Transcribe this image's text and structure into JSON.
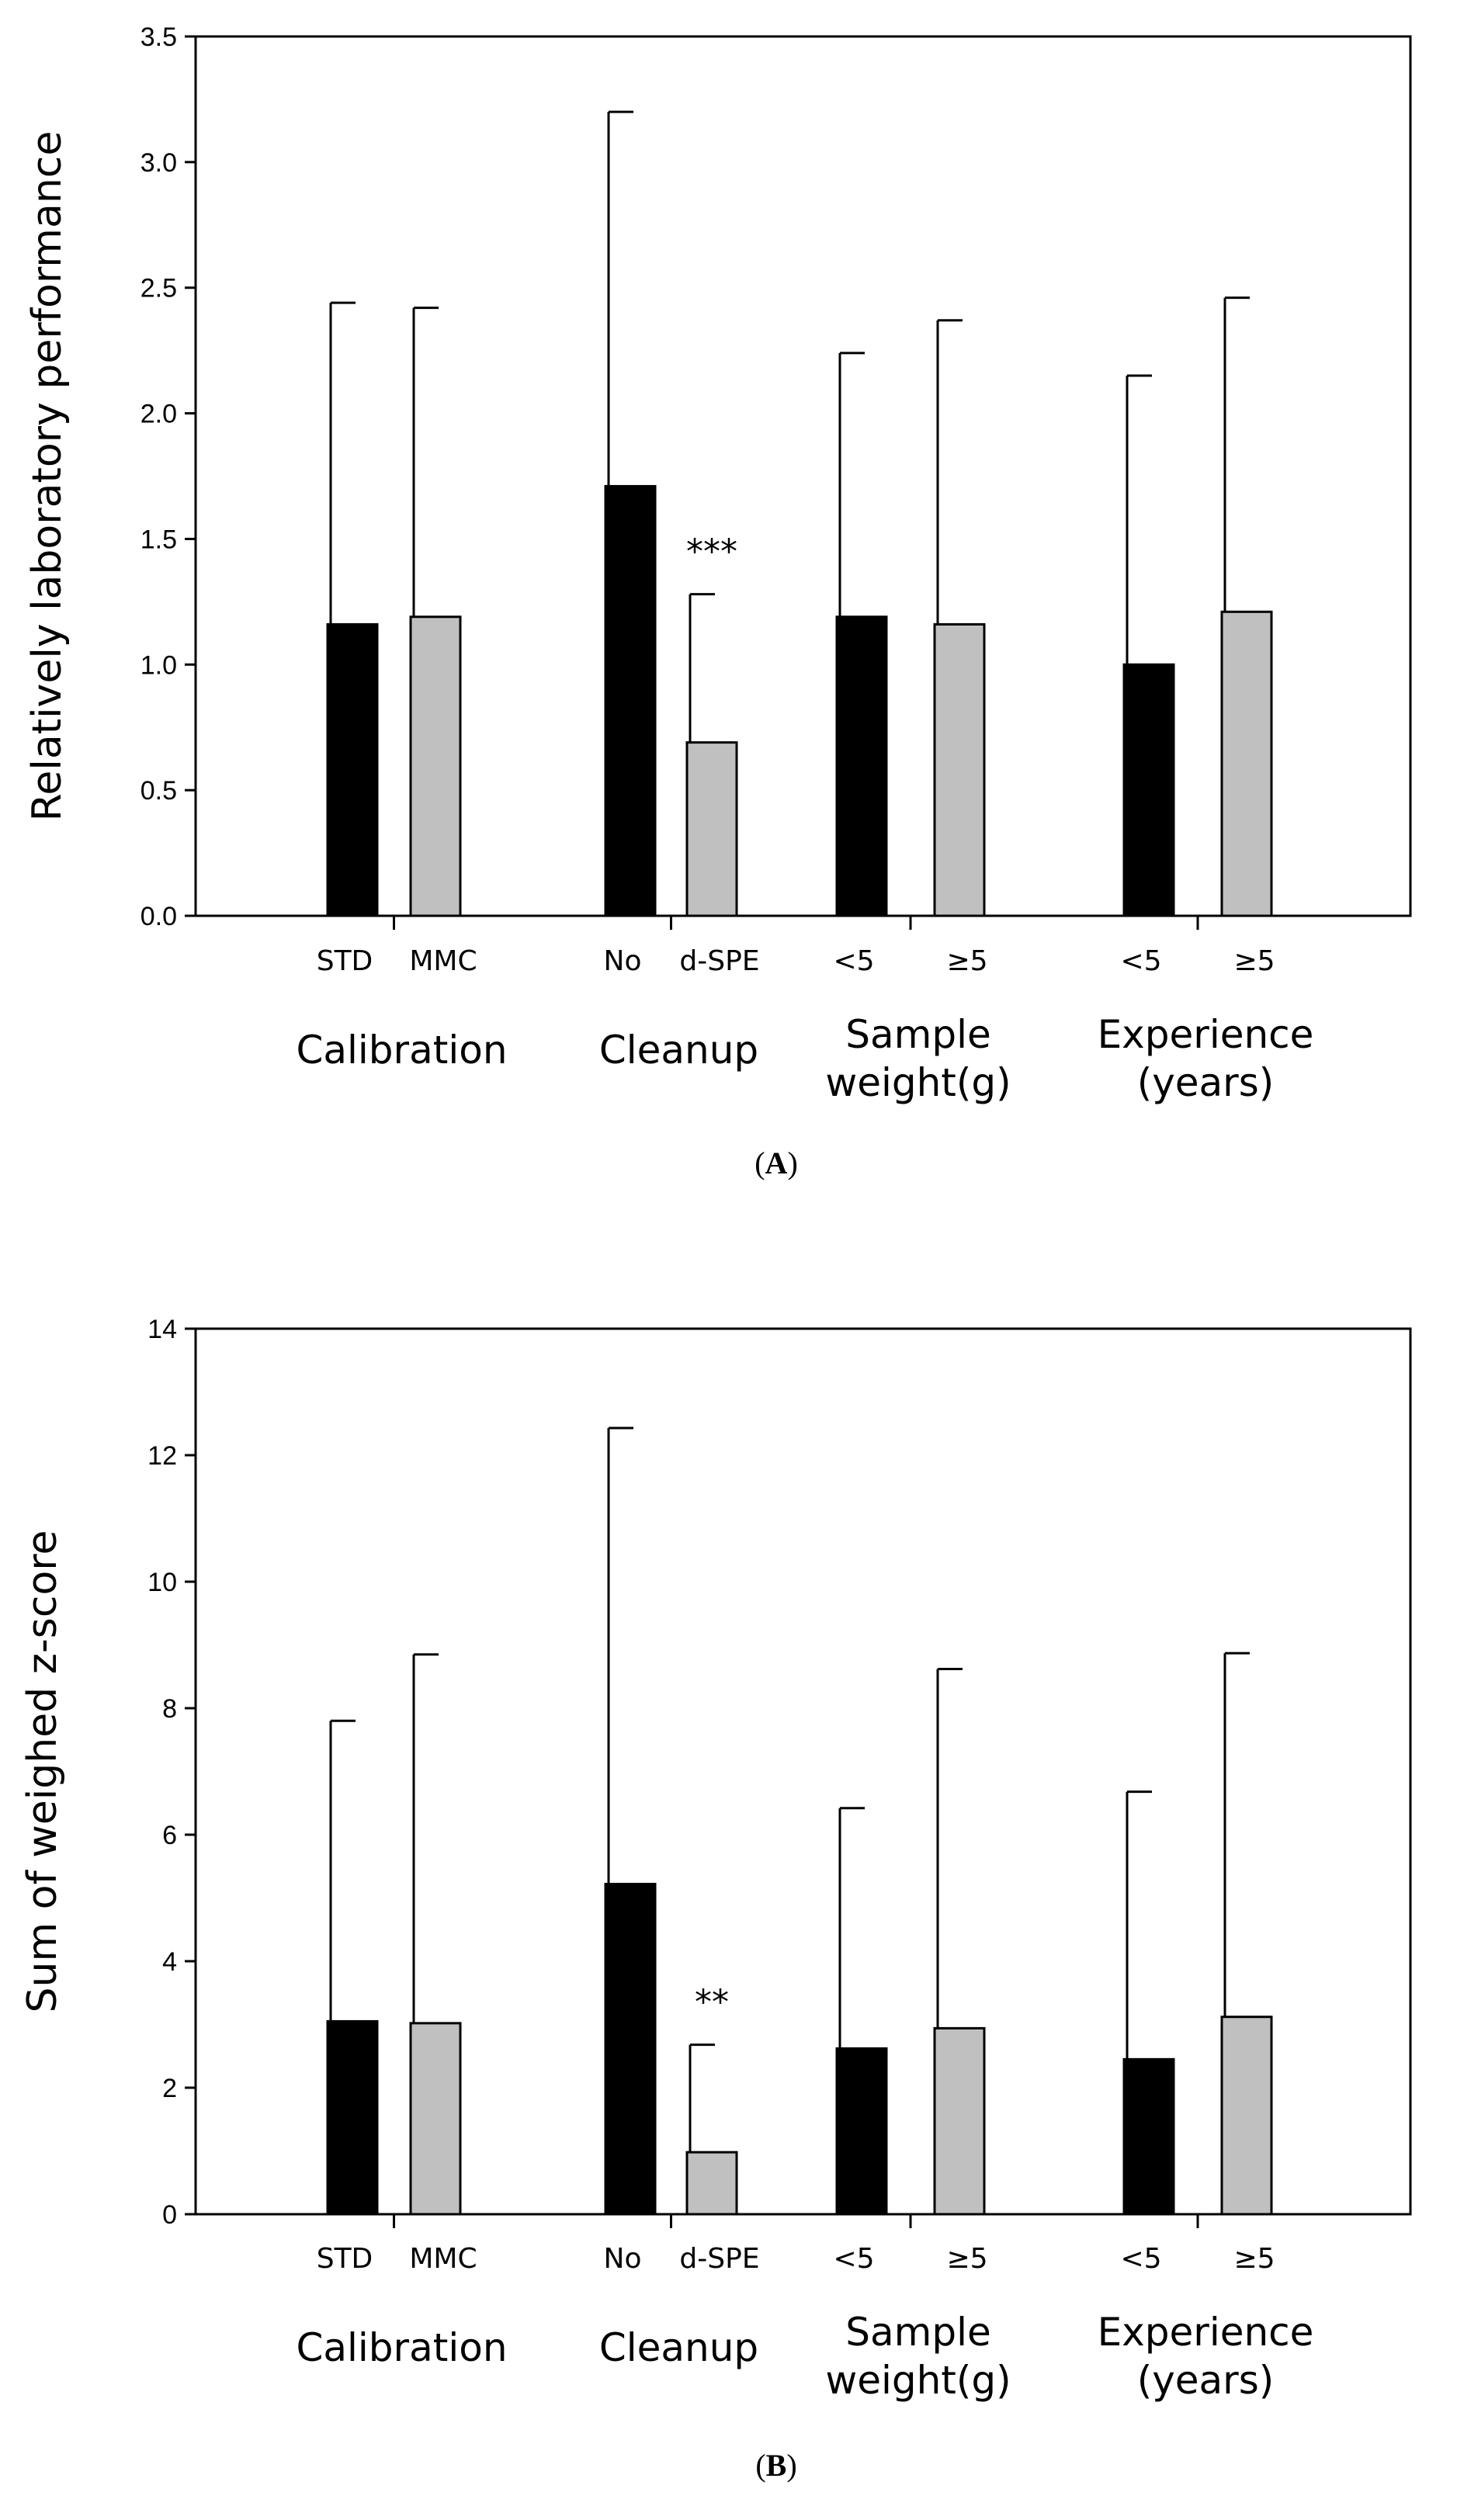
{
  "colors": {
    "group1": "#000000",
    "group2": "#c0c0c0"
  },
  "chart_data": [
    {
      "type": "bar",
      "panel_label": "A",
      "ylabel": "Relatively laboratory performance",
      "ylim": [
        0,
        3.5
      ],
      "yticks": [
        "0.0",
        "0.5",
        "1.0",
        "1.5",
        "2.0",
        "2.5",
        "3.0",
        "3.5"
      ],
      "ytick_values": [
        0,
        0.5,
        1.0,
        1.5,
        2.0,
        2.5,
        3.0,
        3.5
      ],
      "groups": [
        {
          "label_lines": [
            "Calibration"
          ],
          "categories": [
            "STD",
            "MMC"
          ]
        },
        {
          "label_lines": [
            "Cleanup"
          ],
          "categories": [
            "No",
            "d-SPE"
          ]
        },
        {
          "label_lines": [
            "Sample",
            "weight(g)"
          ],
          "categories": [
            "<5",
            "≥5"
          ]
        },
        {
          "label_lines": [
            "Experience",
            "(years)"
          ],
          "categories": [
            "<5",
            "≥5"
          ]
        }
      ],
      "values": [
        1.16,
        1.19,
        1.71,
        0.69,
        1.19,
        1.16,
        1.0,
        1.21
      ],
      "error_top": [
        2.44,
        2.42,
        3.2,
        1.28,
        2.24,
        2.37,
        2.15,
        2.46
      ],
      "annotations": [
        {
          "text": "***",
          "bar_index": 3
        }
      ],
      "grid": false,
      "legend": "none"
    },
    {
      "type": "bar",
      "panel_label": "B",
      "ylabel": "Sum of weighed z-score",
      "ylim": [
        0,
        14
      ],
      "yticks": [
        "0",
        "2",
        "4",
        "6",
        "8",
        "10",
        "12",
        "14"
      ],
      "ytick_values": [
        0,
        2,
        4,
        6,
        8,
        10,
        12,
        14
      ],
      "groups": [
        {
          "label_lines": [
            "Calibration"
          ],
          "categories": [
            "STD",
            "MMC"
          ]
        },
        {
          "label_lines": [
            "Cleanup"
          ],
          "categories": [
            "No",
            "d-SPE"
          ]
        },
        {
          "label_lines": [
            "Sample",
            "weight(g)"
          ],
          "categories": [
            "<5",
            "≥5"
          ]
        },
        {
          "label_lines": [
            "Experience",
            "(years)"
          ],
          "categories": [
            "<5",
            "≥5"
          ]
        }
      ],
      "values": [
        3.05,
        3.02,
        5.22,
        0.98,
        2.62,
        2.94,
        2.45,
        3.12
      ],
      "error_top": [
        7.8,
        8.85,
        12.43,
        2.68,
        6.42,
        8.62,
        6.68,
        8.87
      ],
      "annotations": [
        {
          "text": "**",
          "bar_index": 3
        }
      ],
      "grid": false,
      "legend": "none"
    }
  ]
}
